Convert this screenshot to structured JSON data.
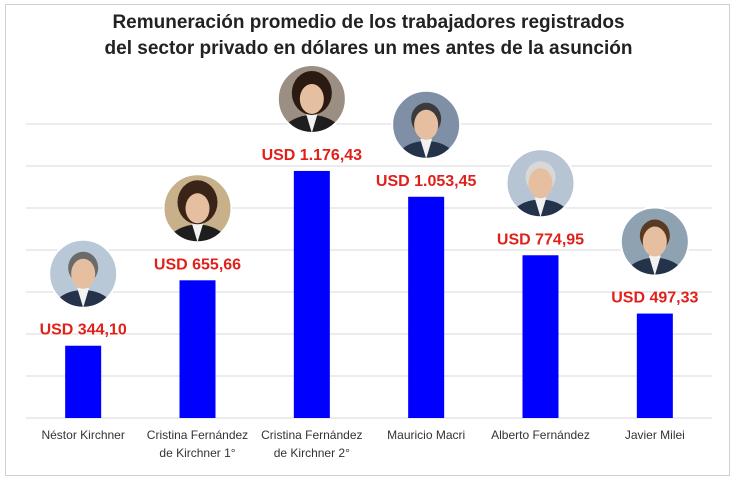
{
  "chart_data": {
    "type": "bar",
    "title_lines": [
      "Remuneración promedio de los trabajadores registrados",
      "del sector privado en dólares un mes antes de la asunción"
    ],
    "categories": [
      [
        "Néstor Kirchner"
      ],
      [
        "Cristina Fernández",
        "de Kirchner 1°"
      ],
      [
        "Cristina Fernández",
        "de Kirchner 2°"
      ],
      [
        "Mauricio Macri"
      ],
      [
        "Alberto Fernández"
      ],
      [
        "Javier Milei"
      ]
    ],
    "values": [
      344.1,
      655.66,
      1176.43,
      1053.45,
      774.95,
      497.33
    ],
    "value_labels": [
      "USD 344,10",
      "USD 655,66",
      "USD 1.176,43",
      "USD 1.053,45",
      "USD 774,95",
      "USD 497,33"
    ],
    "portrait_icons": [
      "nestor-kirchner-portrait",
      "cristina-fernandez-1-portrait",
      "cristina-fernandez-2-portrait",
      "mauricio-macri-portrait",
      "alberto-fernandez-portrait",
      "javier-milei-portrait"
    ],
    "ylim": [
      0,
      1400
    ],
    "grid": true,
    "legend": "none",
    "colors": {
      "bar": "#0000ff",
      "value_label": "#e0201b",
      "grid": "#d9d9d9"
    }
  }
}
